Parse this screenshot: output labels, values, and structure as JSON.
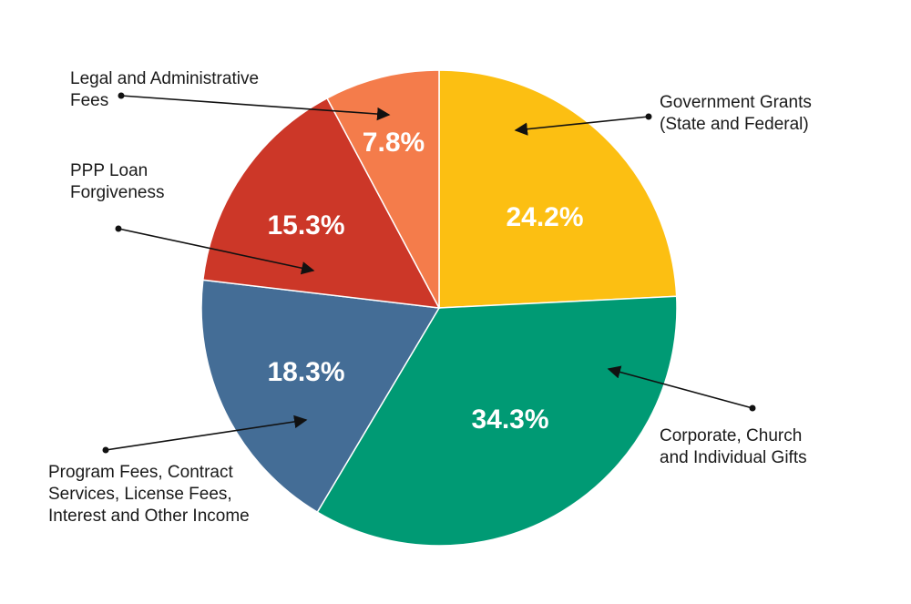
{
  "chart_data": {
    "type": "pie",
    "title": "",
    "start_angle_deg": 90,
    "direction": "clockwise",
    "slices": [
      {
        "name": "Government Grants (State and Federal)",
        "label_lines": [
          "Government Grants",
          "(State and Federal)"
        ],
        "value": 24.2,
        "value_label": "24.2%",
        "color": "#fcbf12"
      },
      {
        "name": "Corporate, Church and Individual Gifts",
        "label_lines": [
          "Corporate, Church",
          "and Individual Gifts"
        ],
        "value": 34.3,
        "value_label": "34.3%",
        "color": "#009a74"
      },
      {
        "name": "Program Fees, Contract Services, License Fees, Interest and Other Income",
        "label_lines": [
          "Program Fees, Contract",
          "Services, License Fees,",
          "Interest and Other Income"
        ],
        "value": 18.3,
        "value_label": "18.3%",
        "color": "#446d96"
      },
      {
        "name": "PPP Loan Forgiveness",
        "label_lines": [
          "PPP Loan",
          "Forgiveness"
        ],
        "value": 15.3,
        "value_label": "15.3%",
        "color": "#cc3728"
      },
      {
        "name": "Legal and Administrative Fees",
        "label_lines": [
          "Legal and Administrative",
          "Fees"
        ],
        "value": 7.8,
        "value_label": "7.8%",
        "color": "#f47c4b"
      }
    ]
  }
}
